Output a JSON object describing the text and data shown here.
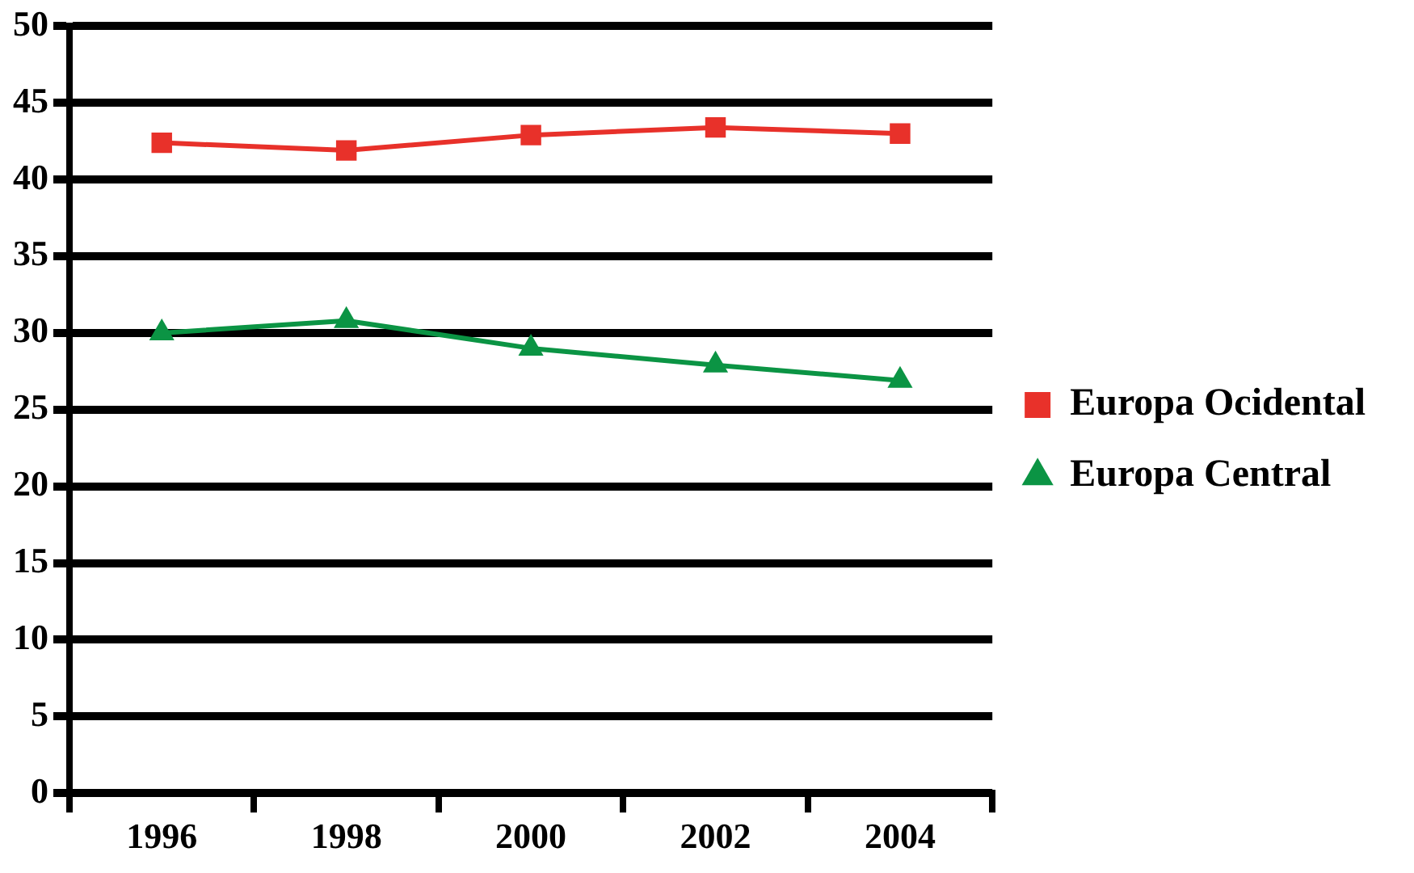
{
  "chart_data": {
    "type": "line",
    "categories": [
      "1996",
      "1998",
      "2000",
      "2002",
      "2004"
    ],
    "series": [
      {
        "name": "Europa Ocidental",
        "color": "#e8312a",
        "marker": "square",
        "values": [
          42.4,
          41.9,
          42.9,
          43.4,
          43.0
        ]
      },
      {
        "name": "Europa Central",
        "color": "#0b9444",
        "marker": "triangle",
        "values": [
          30.0,
          30.8,
          29.0,
          27.9,
          26.9
        ]
      }
    ],
    "ylim": [
      0,
      50
    ],
    "yticks": [
      0,
      5,
      10,
      15,
      20,
      25,
      30,
      35,
      40,
      45,
      50
    ],
    "grid": "y",
    "legend": "right"
  }
}
